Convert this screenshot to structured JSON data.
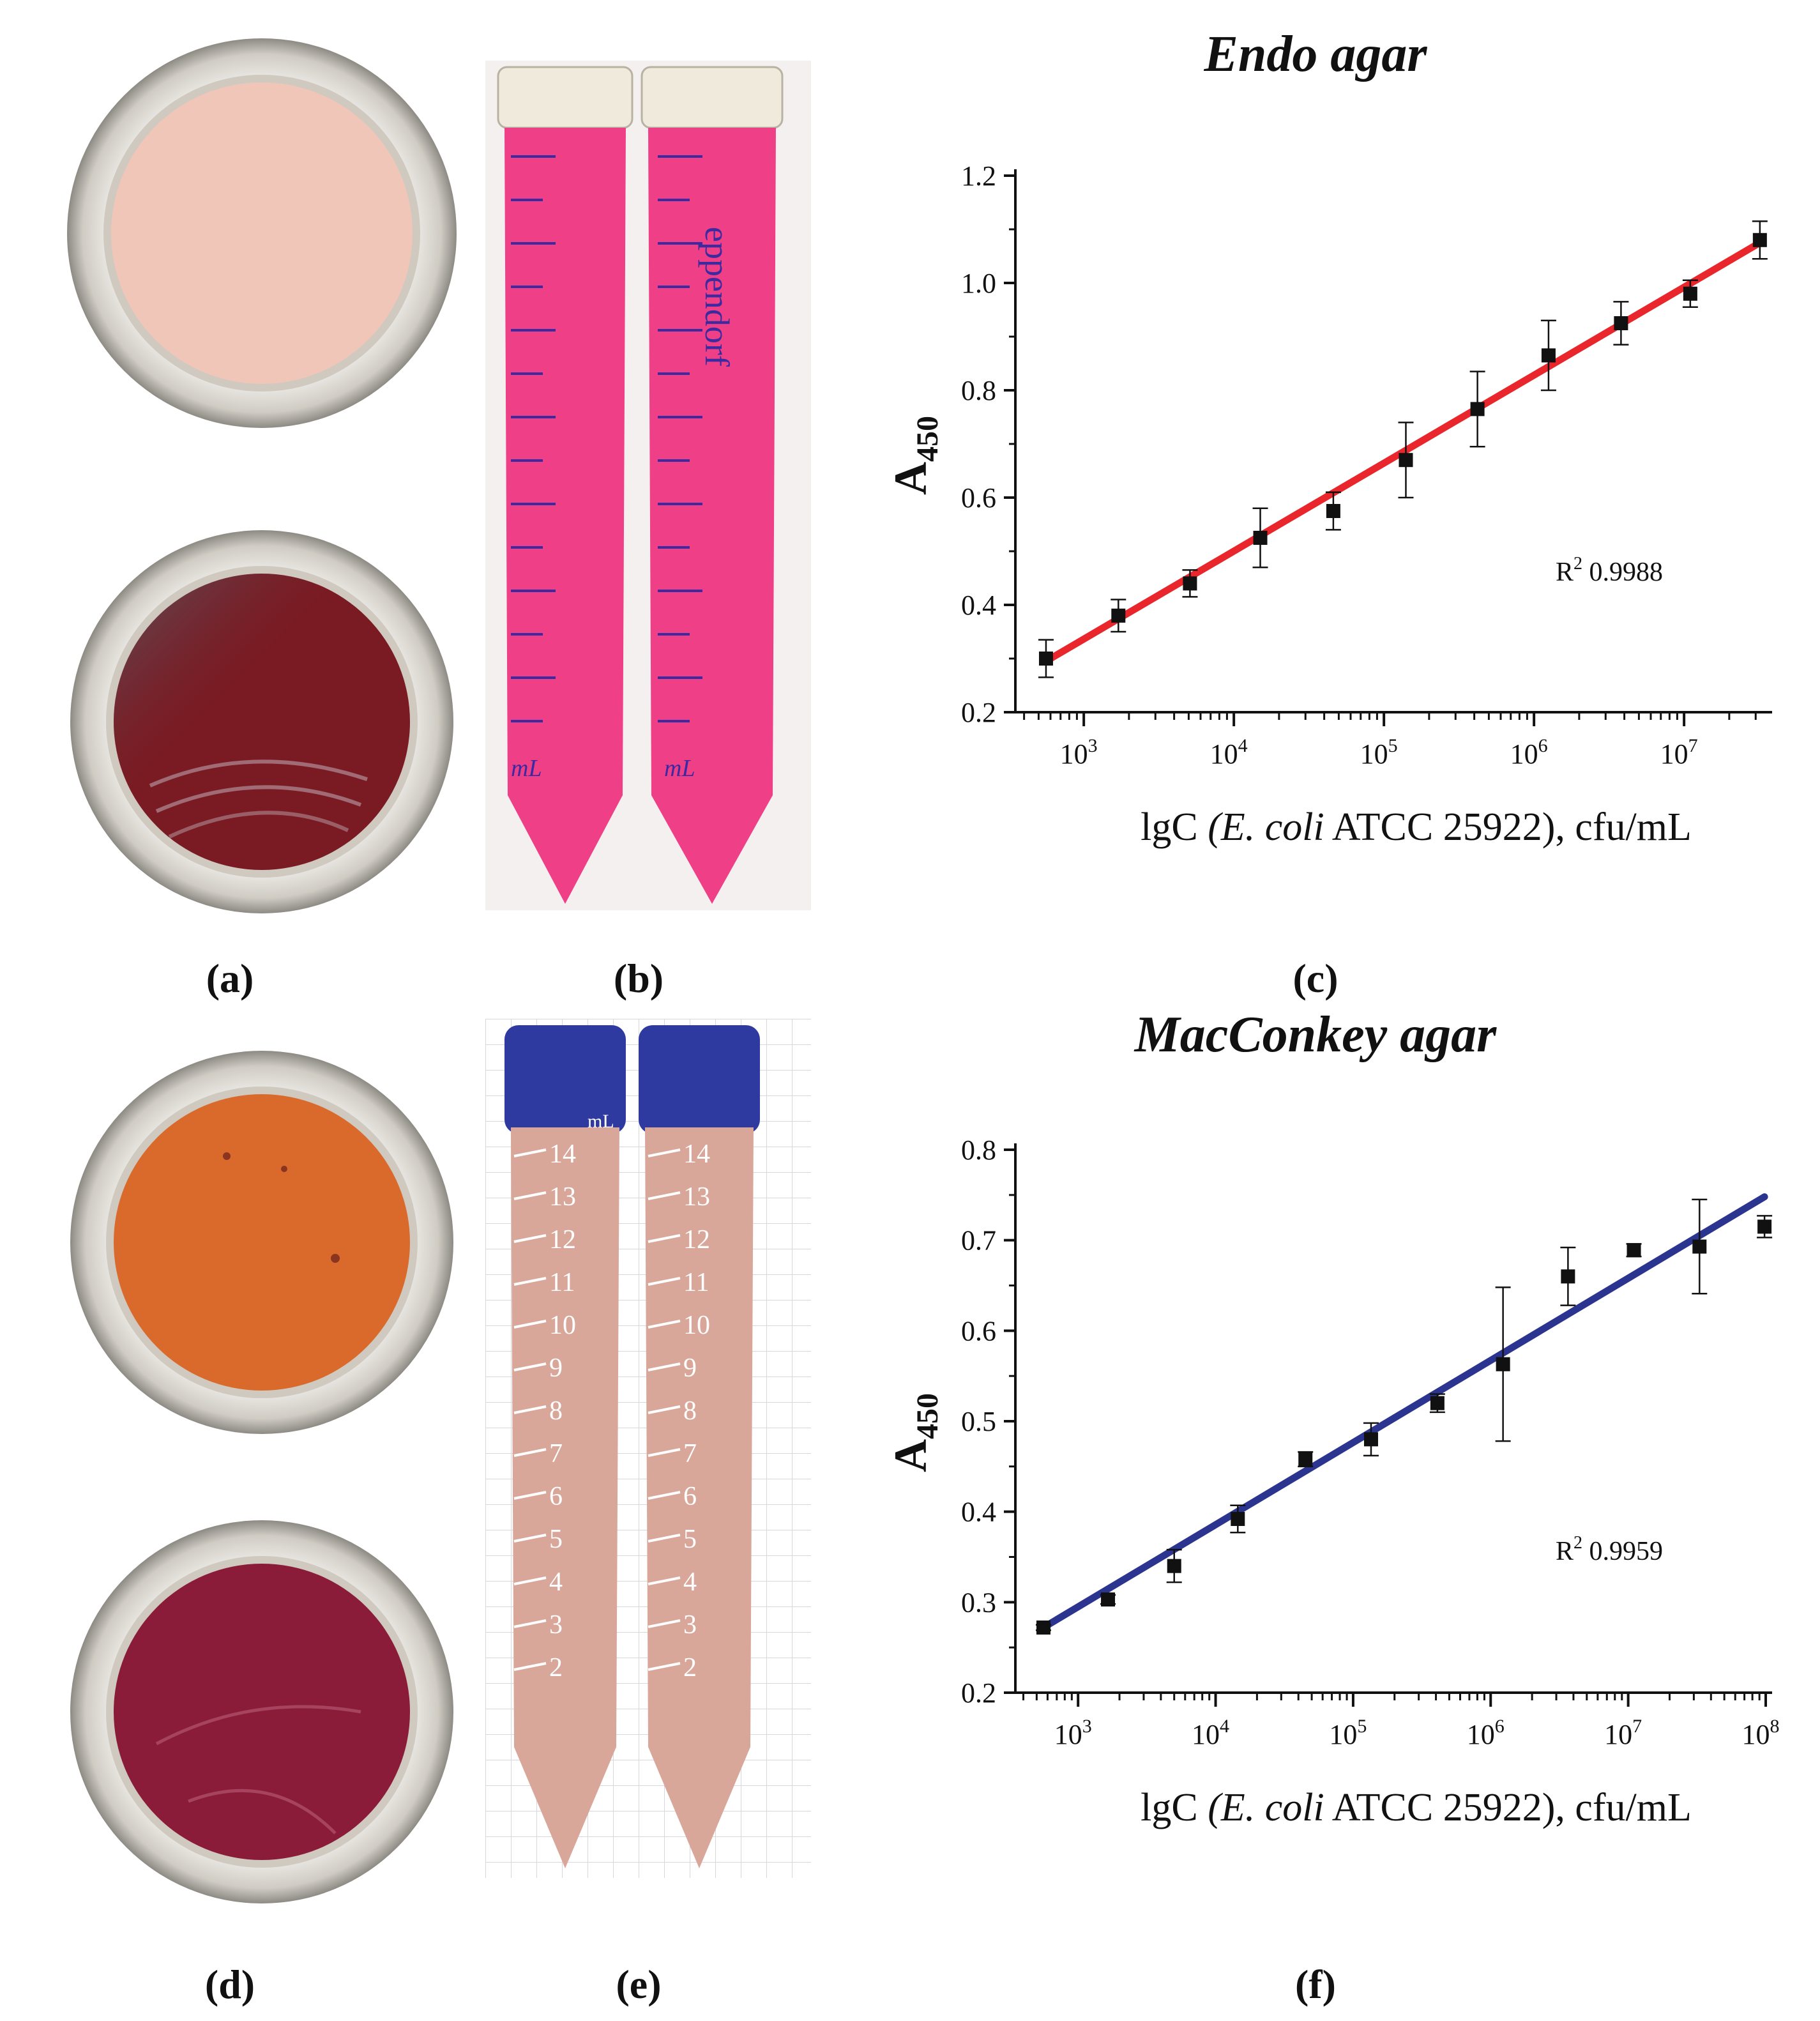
{
  "figure": {
    "panel_labels": {
      "a": "(a)",
      "b": "(b)",
      "c": "(c)",
      "d": "(d)",
      "e": "(e)",
      "f": "(f)"
    },
    "tube_text": {
      "brand": "eppendorf",
      "unit": "mL",
      "unit_e": "mL",
      "graduations": [
        "14",
        "13",
        "12",
        "11",
        "10",
        "9",
        "8",
        "7",
        "6",
        "5",
        "4",
        "3",
        "2"
      ]
    }
  },
  "colors": {
    "endo_fit": "#e8262b",
    "macconkey_fit": "#2b3590",
    "points": "#111111",
    "endo_plate_blank": "#f0c6b8",
    "endo_plate_growth": "#7a1a22",
    "endo_tube_liquid": "#ef3f86",
    "macconkey_plate_blank": "#d96a2c",
    "macconkey_plate_growth": "#8a1c3a",
    "macconkey_tube_liquid": "#d9a79a",
    "macconkey_cap": "#2f3aa0",
    "endo_cap": "#efeadc"
  },
  "chart_data": [
    {
      "type": "scatter",
      "title": "Endo agar",
      "xlabel_parts": [
        "lgC ",
        "(E. coli",
        " ATCC 25922), cfu/mL"
      ],
      "ylabel": "A",
      "ylabel_sub": "450",
      "x_scale": "log",
      "xlim": [
        350,
        35000000
      ],
      "ylim": [
        0.2,
        1.2
      ],
      "yticks": [
        "0.2",
        "0.4",
        "0.6",
        "0.8",
        "1.0",
        "1.2"
      ],
      "xtick_labels": [
        {
          "base": "10",
          "exp": "3",
          "value": 1000
        },
        {
          "base": "10",
          "exp": "4",
          "value": 10000
        },
        {
          "base": "10",
          "exp": "5",
          "value": 100000
        },
        {
          "base": "10",
          "exp": "6",
          "value": 1000000
        },
        {
          "base": "10",
          "exp": "7",
          "value": 10000000
        }
      ],
      "annotation": {
        "r2_label": "R",
        "r2_sup": "2",
        "r2_value": "0.9988"
      },
      "series": [
        {
          "x": [
            560,
            1700,
            5100,
            15000,
            46000,
            140000,
            420000,
            1250000,
            3800000,
            11000000,
            32000000
          ],
          "y": [
            0.3,
            0.38,
            0.44,
            0.525,
            0.575,
            0.67,
            0.765,
            0.865,
            0.925,
            0.98,
            1.08
          ],
          "err": [
            0.035,
            0.03,
            0.025,
            0.055,
            0.035,
            0.07,
            0.07,
            0.065,
            0.04,
            0.025,
            0.035
          ]
        }
      ],
      "fit": {
        "x": [
          560,
          32000000
        ],
        "y": [
          0.295,
          1.075
        ]
      }
    },
    {
      "type": "scatter",
      "title": "MacConkey agar",
      "xlabel_parts": [
        "lgC ",
        "(E. coli",
        " ATCC 25922), cfu/mL"
      ],
      "ylabel": "A",
      "ylabel_sub": "450",
      "x_scale": "log",
      "xlim": [
        350,
        100000000
      ],
      "ylim": [
        0.2,
        0.8
      ],
      "yticks": [
        "0.2",
        "0.3",
        "0.4",
        "0.5",
        "0.6",
        "0.7",
        "0.8"
      ],
      "xtick_labels": [
        {
          "base": "10",
          "exp": "3",
          "value": 1000
        },
        {
          "base": "10",
          "exp": "4",
          "value": 10000
        },
        {
          "base": "10",
          "exp": "5",
          "value": 100000
        },
        {
          "base": "10",
          "exp": "6",
          "value": 1000000
        },
        {
          "base": "10",
          "exp": "7",
          "value": 10000000
        },
        {
          "base": "10",
          "exp": "8",
          "value": 100000000
        }
      ],
      "annotation": {
        "r2_label": "R",
        "r2_sup": "2",
        "r2_value": "0.9959"
      },
      "series": [
        {
          "x": [
            560,
            1650,
            5000,
            14500,
            45000,
            135000,
            410000,
            1230000,
            3650000,
            11000000,
            33000000,
            98000000
          ],
          "y": [
            0.272,
            0.303,
            0.34,
            0.392,
            0.458,
            0.48,
            0.52,
            0.563,
            0.66,
            0.689,
            0.693,
            0.715
          ],
          "err": [
            0.003,
            0.005,
            0.018,
            0.015,
            0.008,
            0.018,
            0.01,
            0.085,
            0.032,
            0.007,
            0.052,
            0.012
          ]
        }
      ],
      "fit": {
        "x": [
          560,
          98000000
        ],
        "y": [
          0.272,
          0.748
        ]
      }
    }
  ]
}
